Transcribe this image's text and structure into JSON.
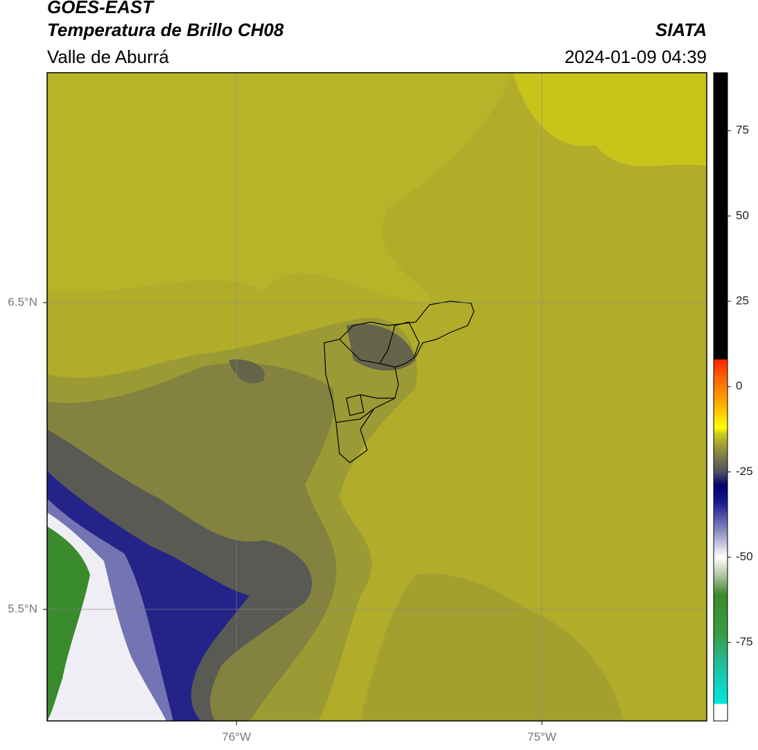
{
  "header": {
    "title": "GOES-EAST",
    "subtitle": "Temperatura de Brillo CH08",
    "region": "Valle de Aburrá",
    "source": "SIATA",
    "datetime": "2024-01-09 04:39"
  },
  "chart_data": {
    "type": "map",
    "xlim": [
      -76.62,
      -74.46
    ],
    "ylim": [
      5.136,
      7.25
    ],
    "xticks": [
      {
        "value": -76,
        "label": "76°W"
      },
      {
        "value": -75,
        "label": "75°W"
      }
    ],
    "yticks": [
      {
        "value": 5.5,
        "label": "5.5°N"
      },
      {
        "value": 6.5,
        "label": "6.5°N"
      }
    ],
    "grid": true,
    "colorbar": {
      "lim": [
        -98,
        92
      ],
      "ticks": [
        -75,
        -50,
        -25,
        0,
        25,
        50,
        75
      ],
      "stops": [
        {
          "value": -98,
          "color": "#ffffff"
        },
        {
          "value": -93,
          "color": "#ffffff"
        },
        {
          "value": -93,
          "color": "#00e8e0"
        },
        {
          "value": -82,
          "color": "#20c0a0"
        },
        {
          "value": -72,
          "color": "#3a9a40"
        },
        {
          "value": -61,
          "color": "#3a8a2a"
        },
        {
          "value": -55,
          "color": "#b8c8a8"
        },
        {
          "value": -50,
          "color": "#ffffff"
        },
        {
          "value": -42,
          "color": "#8888c0"
        },
        {
          "value": -34,
          "color": "#1a1a90"
        },
        {
          "value": -29,
          "color": "#000070"
        },
        {
          "value": -25,
          "color": "#505060"
        },
        {
          "value": -19,
          "color": "#8a8a40"
        },
        {
          "value": -14,
          "color": "#c8c820"
        },
        {
          "value": -12,
          "color": "#ffff00"
        },
        {
          "value": -4,
          "color": "#ffa000"
        },
        {
          "value": 3,
          "color": "#ff6000"
        },
        {
          "value": 8,
          "color": "#ff2000"
        },
        {
          "value": 8,
          "color": "#000000"
        },
        {
          "value": 92,
          "color": "#000000"
        }
      ]
    }
  }
}
